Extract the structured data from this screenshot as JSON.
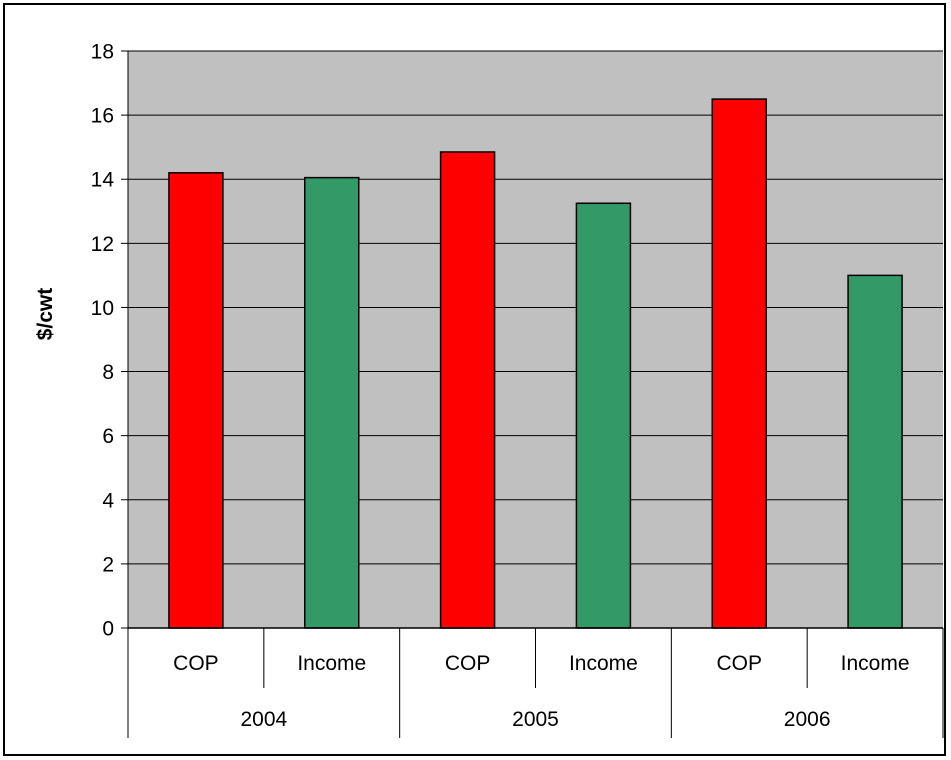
{
  "chart_data": {
    "type": "bar",
    "groups": [
      {
        "label": "2004",
        "bars": [
          {
            "label": "COP",
            "value": 14.2
          },
          {
            "label": "Income",
            "value": 14.05
          }
        ]
      },
      {
        "label": "2005",
        "bars": [
          {
            "label": "COP",
            "value": 14.85
          },
          {
            "label": "Income",
            "value": 13.25
          }
        ]
      },
      {
        "label": "2006",
        "bars": [
          {
            "label": "COP",
            "value": 16.5
          },
          {
            "label": "Income",
            "value": 11.0
          }
        ]
      }
    ],
    "categories": [
      "COP",
      "Income",
      "COP",
      "Income",
      "COP",
      "Income"
    ],
    "values": [
      14.2,
      14.05,
      14.85,
      13.25,
      16.5,
      11.0
    ],
    "bar_colors": {
      "COP": "#ff0000",
      "Income": "#339966"
    },
    "plot_background": "#c0c0c0",
    "title": "",
    "xlabel": "",
    "ylabel": "$/cwt",
    "ylim": [
      0,
      18
    ],
    "yticks": [
      0,
      2,
      4,
      6,
      8,
      10,
      12,
      14,
      16,
      18
    ],
    "grid": true,
    "legend": "none"
  }
}
